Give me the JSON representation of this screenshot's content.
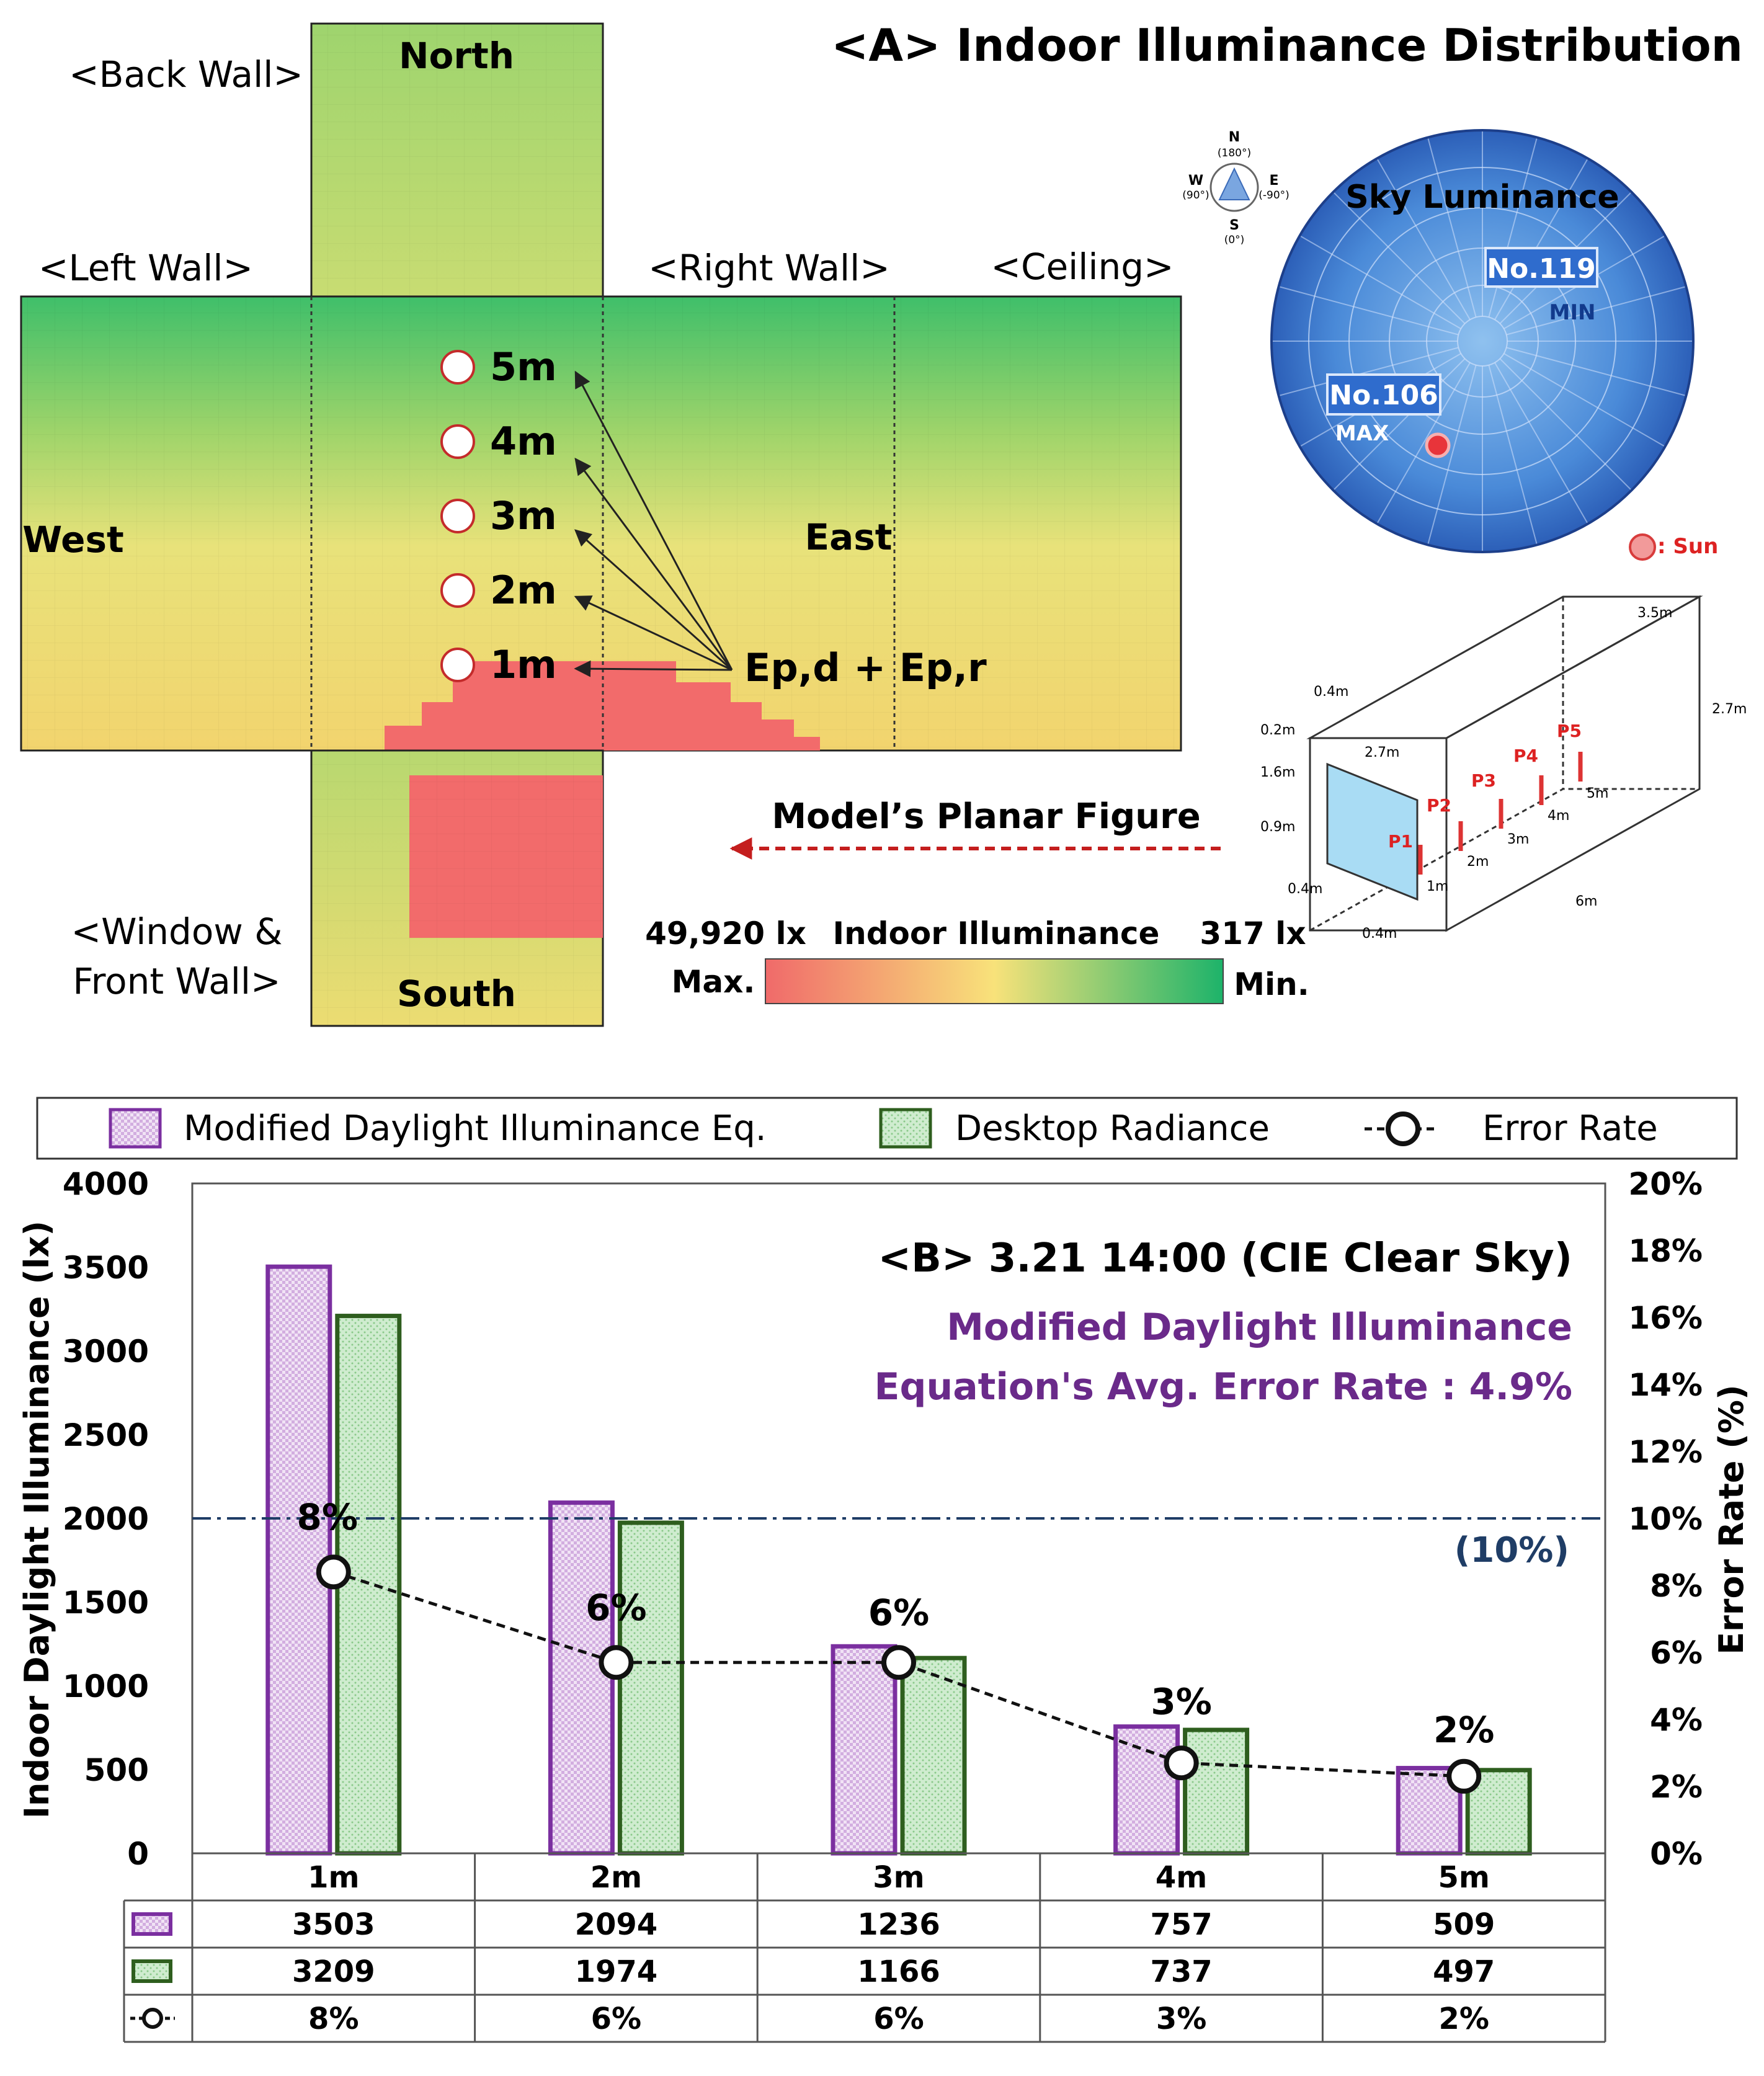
{
  "panel_a": {
    "title": "<A> Indoor Illuminance Distribution",
    "wall_labels": {
      "back": "<Back Wall>",
      "left": "<Left Wall>",
      "right": "<Right Wall>",
      "ceiling": "<Ceiling>",
      "window_line1": "<Window &",
      "window_line2": "Front Wall>"
    },
    "directions": {
      "north": "North",
      "south": "South",
      "west": "West",
      "east": "East"
    },
    "points": [
      "5m",
      "4m",
      "3m",
      "2m",
      "1m"
    ],
    "ep_label": "Ep,d + Ep,r",
    "sky": {
      "title": "Sky Luminance",
      "min_patch": "No.119",
      "min_label": "MIN",
      "max_patch": "No.106",
      "max_label": "MAX",
      "sun_label": ": Sun"
    },
    "compass": {
      "n": "N",
      "n_deg": "(180°)",
      "w": "W",
      "w_deg": "(90°)",
      "e": "E",
      "e_deg": "(-90°)",
      "s": "S",
      "s_deg": "(0°)"
    },
    "planar_figure": "Model’s Planar Figure",
    "scale": {
      "title": "Indoor Illuminance",
      "max_value": "49,920 lx",
      "min_value": "317 lx",
      "max_label": "Max.",
      "min_label": "Min.",
      "colors": [
        "#f06a6a",
        "#f8e27a",
        "#1db36a"
      ]
    },
    "model": {
      "dims": [
        "3.5m",
        "2.7m",
        "0.4m",
        "0.2m",
        "2.7m",
        "1.6m",
        "0.9m",
        "0.4m",
        "0.4m",
        "6m"
      ],
      "point_labels": [
        "P1",
        "P2",
        "P3",
        "P4",
        "P5"
      ],
      "distance_labels": [
        "1m",
        "2m",
        "3m",
        "4m",
        "5m"
      ]
    }
  },
  "chart_data": {
    "type": "bar",
    "title": "<B> 3.21 14:00 (CIE Clear Sky)",
    "annotation": [
      "Modified Daylight Illuminance",
      "Equation's Avg. Error Rate : 4.9%"
    ],
    "categories": [
      "1m",
      "2m",
      "3m",
      "4m",
      "5m"
    ],
    "series": [
      {
        "name": "Modified Daylight Illuminance Eq.",
        "values": [
          3503,
          2094,
          1236,
          757,
          509
        ],
        "color": "#7b2fa0"
      },
      {
        "name": "Desktop Radiance",
        "values": [
          3209,
          1974,
          1166,
          737,
          497
        ],
        "color": "#2e5e1e"
      }
    ],
    "error_rate": {
      "name": "Error Rate",
      "values": [
        8.4,
        5.7,
        5.7,
        2.7,
        2.3
      ],
      "labels": [
        "8%",
        "6%",
        "6%",
        "3%",
        "2%"
      ]
    },
    "table_rows": [
      [
        "3503",
        "2094",
        "1236",
        "757",
        "509"
      ],
      [
        "3209",
        "1974",
        "1166",
        "737",
        "497"
      ],
      [
        "8%",
        "6%",
        "6%",
        "3%",
        "2%"
      ]
    ],
    "ylabel": "Indoor Daylight Illuminance (lx)",
    "ylim": [
      0,
      4000
    ],
    "yticks": [
      0,
      500,
      1000,
      1500,
      2000,
      2500,
      3000,
      3500,
      4000
    ],
    "y2label": "Error Rate (%)",
    "y2lim": [
      0,
      20
    ],
    "y2ticks": [
      "0%",
      "2%",
      "4%",
      "6%",
      "8%",
      "10%",
      "12%",
      "14%",
      "16%",
      "18%",
      "20%"
    ],
    "reference_line": {
      "value": 10,
      "label": "(10%)"
    }
  }
}
